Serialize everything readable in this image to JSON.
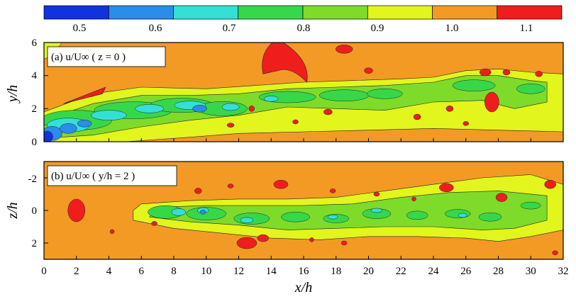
{
  "colors": {
    "background_field": "#f39a25",
    "colorbar": [
      "#1133dd",
      "#2a8de8",
      "#34e0d6",
      "#36d84a",
      "#7edb2a",
      "#e2f51c",
      "#f39a25",
      "#f01d1d"
    ]
  },
  "colorbar": {
    "tick_labels": [
      "0.5",
      "0.6",
      "0.7",
      "0.8",
      "0.9",
      "1.0",
      "1.1"
    ]
  },
  "chart_data": [
    {
      "type": "heatmap",
      "panel": "top",
      "label": "(a) u/U∞  ( z = 0 )",
      "xlabel": "",
      "ylabel": "y/h",
      "xlim": [
        0,
        32
      ],
      "ylim": [
        0,
        6
      ],
      "x_ticks": [],
      "y_ticks": [
        0,
        2,
        4,
        6
      ],
      "y_tick_labels": [
        "0",
        "2",
        "4",
        "6"
      ],
      "levels": [
        0.5,
        0.6,
        0.7,
        0.8,
        0.9,
        1.0,
        1.1
      ],
      "features": [
        {
          "kind": "wake",
          "value": 0.75,
          "x": 0.5,
          "y": 0.8
        },
        {
          "kind": "wake",
          "value": 0.8,
          "x": 5.0,
          "y": 2.0
        },
        {
          "kind": "wake",
          "value": 0.8,
          "x": 10.0,
          "y": 2.3
        },
        {
          "kind": "wake",
          "value": 0.85,
          "x": 16.0,
          "y": 2.9
        },
        {
          "kind": "wake",
          "value": 0.85,
          "x": 22.0,
          "y": 3.0
        },
        {
          "kind": "wake",
          "value": 0.85,
          "x": 27.0,
          "y": 3.3
        },
        {
          "kind": "low",
          "value": 0.5,
          "x": 0.4,
          "y": 0.4
        },
        {
          "kind": "low",
          "value": 0.6,
          "x": 9.7,
          "y": 2.1
        },
        {
          "kind": "high",
          "value": 1.12,
          "x": 14.6,
          "y": 4.6
        },
        {
          "kind": "high",
          "value": 1.12,
          "x": 18.6,
          "y": 5.6
        },
        {
          "kind": "high",
          "value": 1.12,
          "x": 2.6,
          "y": 2.7
        },
        {
          "kind": "high",
          "value": 1.12,
          "x": 27.5,
          "y": 2.3
        }
      ]
    },
    {
      "type": "heatmap",
      "panel": "bottom",
      "label": "(b) u/U∞  ( y/h = 2 )",
      "xlabel": "x/h",
      "ylabel": "z/h",
      "xlim": [
        0,
        32
      ],
      "ylim": [
        3,
        -3
      ],
      "x_ticks": [
        0,
        2,
        4,
        6,
        8,
        10,
        12,
        14,
        16,
        18,
        20,
        22,
        24,
        26,
        28,
        30,
        32
      ],
      "x_tick_labels": [
        "0",
        "2",
        "4",
        "6",
        "8",
        "10",
        "12",
        "14",
        "16",
        "18",
        "20",
        "22",
        "24",
        "26",
        "28",
        "30",
        "32"
      ],
      "y_ticks": [
        -2,
        0,
        2
      ],
      "y_tick_labels": [
        "-2",
        "0",
        "2"
      ],
      "levels": [
        0.5,
        0.6,
        0.7,
        0.8,
        0.9,
        1.0,
        1.1
      ],
      "features": [
        {
          "kind": "wake",
          "value": 0.85,
          "x": 8.0,
          "z": 0.0
        },
        {
          "kind": "wake",
          "value": 0.85,
          "x": 13.0,
          "z": 0.3
        },
        {
          "kind": "wake",
          "value": 0.88,
          "x": 20.0,
          "z": 0.0
        },
        {
          "kind": "wake",
          "value": 0.88,
          "x": 27.0,
          "z": 0.0
        },
        {
          "kind": "low",
          "value": 0.65,
          "x": 9.8,
          "z": 0.0
        },
        {
          "kind": "high",
          "value": 1.12,
          "x": 2.0,
          "z": 0.0
        },
        {
          "kind": "high",
          "value": 1.12,
          "x": 12.5,
          "z": 2.2
        },
        {
          "kind": "high",
          "value": 1.12,
          "x": 14.5,
          "z": -1.6
        }
      ]
    }
  ]
}
